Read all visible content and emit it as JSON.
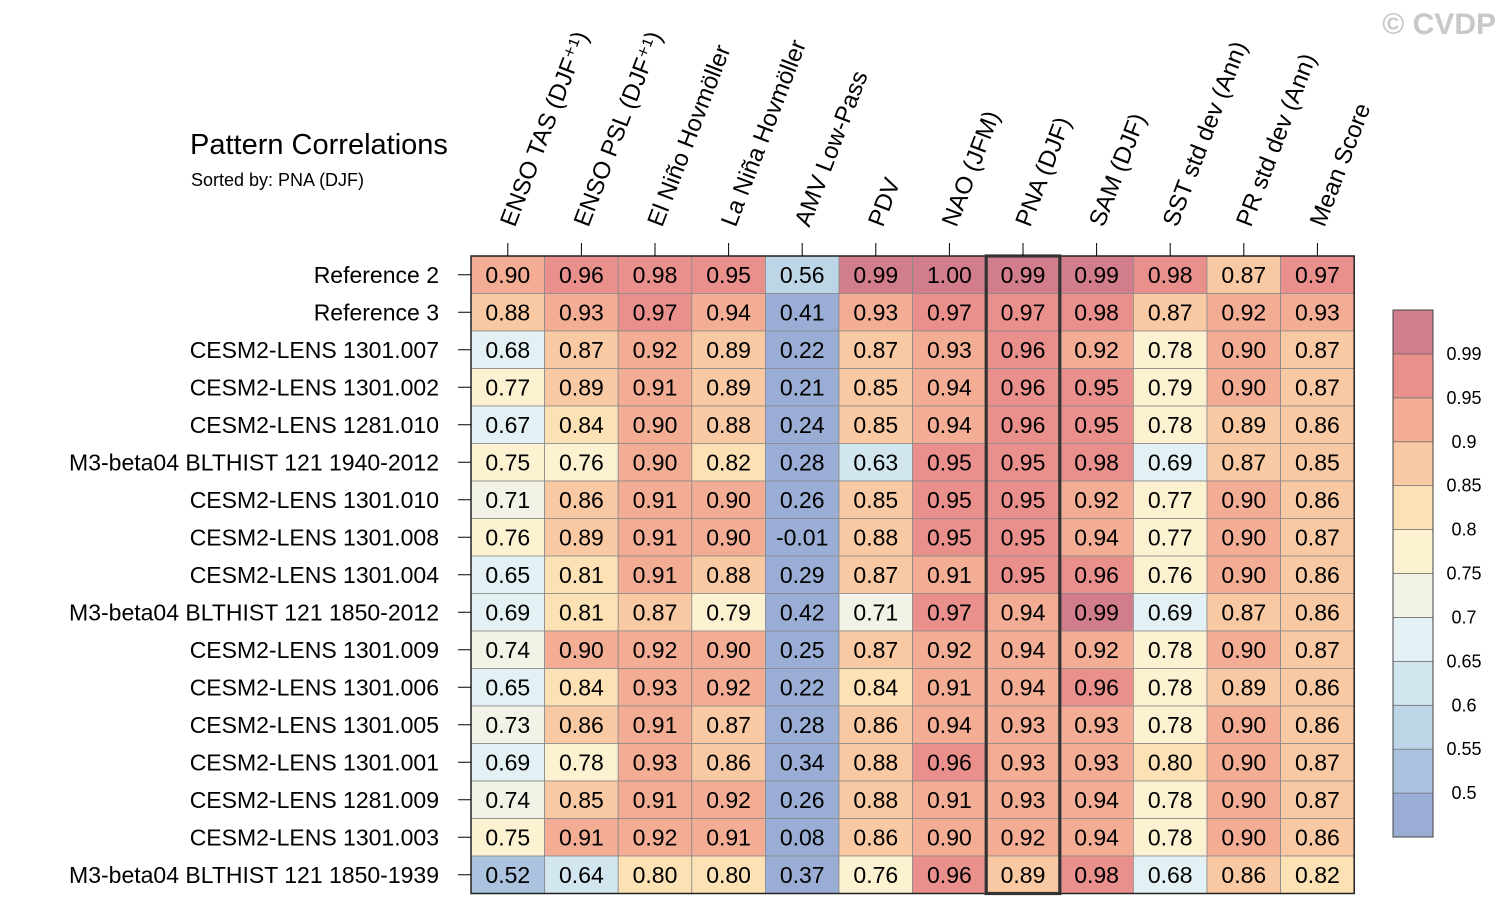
{
  "watermark": "© CVDP",
  "chart_data": {
    "type": "heatmap",
    "title": "Pattern Correlations",
    "subtitle": "Sorted by: PNA (DJF)",
    "highlighted_column": "PNA (DJF)",
    "columns": [
      "ENSO TAS (DJF⁺¹)",
      "ENSO PSL (DJF⁺¹)",
      "El Niño Hovmöller",
      "La Niña Hovmöller",
      "AMV Low-Pass",
      "PDV",
      "NAO (JFM)",
      "PNA (DJF)",
      "SAM (DJF)",
      "SST std dev (Ann)",
      "PR std dev (Ann)",
      "Mean Score"
    ],
    "rows": [
      {
        "label": "Reference 2",
        "values": [
          "0.90",
          "0.96",
          "0.98",
          "0.95",
          "0.56",
          "0.99",
          "1.00",
          "0.99",
          "0.99",
          "0.98",
          "0.87",
          "0.97"
        ]
      },
      {
        "label": "Reference 3",
        "values": [
          "0.88",
          "0.93",
          "0.97",
          "0.94",
          "0.41",
          "0.93",
          "0.97",
          "0.97",
          "0.98",
          "0.87",
          "0.92",
          "0.93"
        ]
      },
      {
        "label": "CESM2-LENS 1301.007",
        "values": [
          "0.68",
          "0.87",
          "0.92",
          "0.89",
          "0.22",
          "0.87",
          "0.93",
          "0.96",
          "0.92",
          "0.78",
          "0.90",
          "0.87"
        ]
      },
      {
        "label": "CESM2-LENS 1301.002",
        "values": [
          "0.77",
          "0.89",
          "0.91",
          "0.89",
          "0.21",
          "0.85",
          "0.94",
          "0.96",
          "0.95",
          "0.79",
          "0.90",
          "0.87"
        ]
      },
      {
        "label": "CESM2-LENS 1281.010",
        "values": [
          "0.67",
          "0.84",
          "0.90",
          "0.88",
          "0.24",
          "0.85",
          "0.94",
          "0.96",
          "0.95",
          "0.78",
          "0.89",
          "0.86"
        ]
      },
      {
        "label": "M3-beta04 BLTHIST 121 1940-2012",
        "values": [
          "0.75",
          "0.76",
          "0.90",
          "0.82",
          "0.28",
          "0.63",
          "0.95",
          "0.95",
          "0.98",
          "0.69",
          "0.87",
          "0.85"
        ]
      },
      {
        "label": "CESM2-LENS 1301.010",
        "values": [
          "0.71",
          "0.86",
          "0.91",
          "0.90",
          "0.26",
          "0.85",
          "0.95",
          "0.95",
          "0.92",
          "0.77",
          "0.90",
          "0.86"
        ]
      },
      {
        "label": "CESM2-LENS 1301.008",
        "values": [
          "0.76",
          "0.89",
          "0.91",
          "0.90",
          "-0.01",
          "0.88",
          "0.95",
          "0.95",
          "0.94",
          "0.77",
          "0.90",
          "0.87"
        ]
      },
      {
        "label": "CESM2-LENS 1301.004",
        "values": [
          "0.65",
          "0.81",
          "0.91",
          "0.88",
          "0.29",
          "0.87",
          "0.91",
          "0.95",
          "0.96",
          "0.76",
          "0.90",
          "0.86"
        ]
      },
      {
        "label": "M3-beta04 BLTHIST 121 1850-2012",
        "values": [
          "0.69",
          "0.81",
          "0.87",
          "0.79",
          "0.42",
          "0.71",
          "0.97",
          "0.94",
          "0.99",
          "0.69",
          "0.87",
          "0.86"
        ]
      },
      {
        "label": "CESM2-LENS 1301.009",
        "values": [
          "0.74",
          "0.90",
          "0.92",
          "0.90",
          "0.25",
          "0.87",
          "0.92",
          "0.94",
          "0.92",
          "0.78",
          "0.90",
          "0.87"
        ]
      },
      {
        "label": "CESM2-LENS 1301.006",
        "values": [
          "0.65",
          "0.84",
          "0.93",
          "0.92",
          "0.22",
          "0.84",
          "0.91",
          "0.94",
          "0.96",
          "0.78",
          "0.89",
          "0.86"
        ]
      },
      {
        "label": "CESM2-LENS 1301.005",
        "values": [
          "0.73",
          "0.86",
          "0.91",
          "0.87",
          "0.28",
          "0.86",
          "0.94",
          "0.93",
          "0.93",
          "0.78",
          "0.90",
          "0.86"
        ]
      },
      {
        "label": "CESM2-LENS 1301.001",
        "values": [
          "0.69",
          "0.78",
          "0.93",
          "0.86",
          "0.34",
          "0.88",
          "0.96",
          "0.93",
          "0.93",
          "0.80",
          "0.90",
          "0.87"
        ]
      },
      {
        "label": "CESM2-LENS 1281.009",
        "values": [
          "0.74",
          "0.85",
          "0.91",
          "0.92",
          "0.26",
          "0.88",
          "0.91",
          "0.93",
          "0.94",
          "0.78",
          "0.90",
          "0.87"
        ]
      },
      {
        "label": "CESM2-LENS 1301.003",
        "values": [
          "0.75",
          "0.91",
          "0.92",
          "0.91",
          "0.08",
          "0.86",
          "0.90",
          "0.92",
          "0.94",
          "0.78",
          "0.90",
          "0.86"
        ]
      },
      {
        "label": "M3-beta04 BLTHIST 121 1850-1939",
        "values": [
          "0.52",
          "0.64",
          "0.80",
          "0.80",
          "0.37",
          "0.76",
          "0.96",
          "0.89",
          "0.98",
          "0.68",
          "0.86",
          "0.82"
        ]
      }
    ],
    "colorbar": {
      "thresholds": [
        0.5,
        0.55,
        0.6,
        0.65,
        0.7,
        0.75,
        0.8,
        0.85,
        0.9,
        0.95,
        0.99
      ],
      "tick_labels": [
        "0.5",
        "0.55",
        "0.6",
        "0.65",
        "0.7",
        "0.75",
        "0.8",
        "0.85",
        "0.9",
        "0.95",
        "0.99"
      ],
      "colors": [
        "#9aaed5",
        "#abc3de",
        "#bdd6e7",
        "#d1e6ef",
        "#e4f1f4",
        "#f2f2e6",
        "#fcf2d2",
        "#fbe1b4",
        "#f8c9a3",
        "#f2ad94",
        "#e98f8c",
        "#d27d8c"
      ]
    }
  }
}
